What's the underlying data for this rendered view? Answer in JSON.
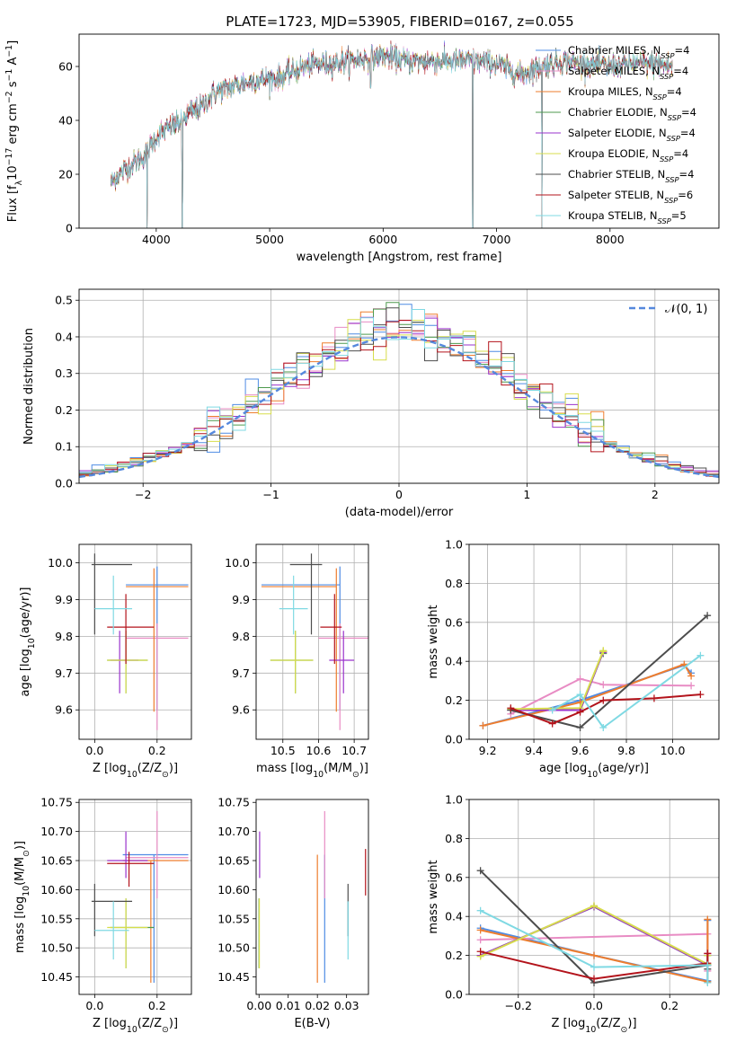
{
  "figure": {
    "title": "PLATE=1723, MJD=53905, FIBERID=0167, z=0.055"
  },
  "colors": {
    "Chabrier MILES": "#4f8ce4",
    "Salpeter MILES": "#e88cc4",
    "Kroupa MILES": "#ee7d2e",
    "Chabrier ELODIE": "#4e9a4e",
    "Salpeter ELODIE": "#9a33cc",
    "Kroupa ELODIE": "#d7dd4c",
    "Chabrier STELIB": "#4d4d4d",
    "Salpeter STELIB": "#b3131b",
    "Kroupa STELIB": "#7fd9e3"
  },
  "chart_data": [
    {
      "id": "spectrum",
      "type": "line",
      "title": "PLATE=1723, MJD=53905, FIBERID=0167, z=0.055",
      "xlabel": "wavelength [Angstrom, rest frame]",
      "ylabel": "Flux [f$_\\lambda$10$^{-17}$ erg cm$^{-2}$ s$^{-1}$ A$^{-1}$]",
      "xlim": [
        3320,
        8960
      ],
      "ylim": [
        0,
        72
      ],
      "xticks": [
        4000,
        5000,
        6000,
        7000,
        8000
      ],
      "yticks": [
        0,
        20,
        40,
        60
      ],
      "legend_position": "upper-right",
      "continuum": [
        [
          3600,
          17
        ],
        [
          3700,
          21
        ],
        [
          3800,
          24
        ],
        [
          3900,
          27
        ],
        [
          4000,
          34
        ],
        [
          4100,
          37
        ],
        [
          4200,
          39
        ],
        [
          4300,
          43
        ],
        [
          4400,
          45
        ],
        [
          4500,
          50
        ],
        [
          4700,
          53
        ],
        [
          4900,
          55
        ],
        [
          5100,
          56
        ],
        [
          5300,
          60
        ],
        [
          5500,
          61
        ],
        [
          5700,
          62
        ],
        [
          6000,
          64
        ],
        [
          6200,
          62
        ],
        [
          6400,
          62
        ],
        [
          6600,
          62
        ],
        [
          6800,
          62
        ],
        [
          7000,
          61
        ],
        [
          7200,
          57
        ],
        [
          7400,
          60
        ],
        [
          7600,
          62
        ],
        [
          7800,
          61
        ],
        [
          8000,
          60
        ],
        [
          8200,
          61
        ],
        [
          8400,
          61
        ],
        [
          8550,
          60
        ]
      ],
      "features": [
        {
          "x": 3920,
          "y": 0
        },
        {
          "x": 4230,
          "y": 0
        },
        {
          "x": 5890,
          "y": 52
        },
        {
          "x": 6790,
          "y": 0
        },
        {
          "x": 7400,
          "y": 0
        }
      ],
      "series": [
        {
          "name": "Chabrier MILES",
          "n_ssp": "4"
        },
        {
          "name": "Salpeter MILES",
          "n_ssp": "4"
        },
        {
          "name": "Kroupa MILES",
          "n_ssp": "4"
        },
        {
          "name": "Chabrier ELODIE",
          "n_ssp": "4"
        },
        {
          "name": "Salpeter ELODIE",
          "n_ssp": "4"
        },
        {
          "name": "Kroupa ELODIE",
          "n_ssp": "4"
        },
        {
          "name": "Chabrier STELIB",
          "n_ssp": "4"
        },
        {
          "name": "Salpeter STELIB",
          "n_ssp": "6"
        },
        {
          "name": "Kroupa STELIB",
          "n_ssp": "5"
        }
      ]
    },
    {
      "id": "residuals",
      "type": "bar",
      "subtype": "step-histogram",
      "xlabel": "(data-model)/error",
      "ylabel": "Normed distribution",
      "xlim": [
        -2.5,
        2.5
      ],
      "ylim": [
        0,
        0.53
      ],
      "xticks": [
        -2,
        -1,
        0,
        1,
        2
      ],
      "yticks": [
        0.0,
        0.1,
        0.2,
        0.3,
        0.4,
        0.5
      ],
      "grid": true,
      "legend": [
        {
          "label": "𝒩(0, 1)",
          "style": "dashed",
          "color": "#5588dd"
        }
      ],
      "legend_position": "upper-right",
      "bin_width": 0.1,
      "bins_left_edge": -2.5,
      "reference_curve": {
        "name": "N(0,1)",
        "mu": 0,
        "sigma": 1
      }
    },
    {
      "id": "age-vs-Z",
      "type": "scatter",
      "subtype": "errorbar",
      "xlabel": "Z [log$_{10}$(Z/Z$_\\odot$)]",
      "ylabel": "age  [log$_{10}$(age/yr)]",
      "xlim": [
        -0.05,
        0.31
      ],
      "ylim": [
        9.52,
        10.05
      ],
      "xticks": [
        0.0,
        0.2
      ],
      "yticks": [
        9.6,
        9.7,
        9.8,
        9.9,
        10.0
      ],
      "grid": true,
      "points": [
        {
          "series": "Chabrier MILES",
          "x": 0.2,
          "y": 9.94,
          "xerr": [
            0.1,
            0.1
          ],
          "yerr": [
            0.34,
            0.05
          ]
        },
        {
          "series": "Salpeter MILES",
          "x": 0.2,
          "y": 9.795,
          "xerr": [
            0.1,
            0.1
          ],
          "yerr": [
            0.25,
            0.04
          ]
        },
        {
          "series": "Kroupa MILES",
          "x": 0.19,
          "y": 9.935,
          "xerr": [
            0.09,
            0.11
          ],
          "yerr": [
            0.34,
            0.05
          ]
        },
        {
          "series": "Chabrier ELODIE",
          "x": 0.1,
          "y": 9.735,
          "xerr": [
            0.06,
            0.07
          ],
          "yerr": [
            0.09,
            0.08
          ]
        },
        {
          "series": "Salpeter ELODIE",
          "x": 0.08,
          "y": 9.735,
          "xerr": [
            0.03,
            0.06
          ],
          "yerr": [
            0.09,
            0.08
          ]
        },
        {
          "series": "Kroupa ELODIE",
          "x": 0.1,
          "y": 9.735,
          "xerr": [
            0.06,
            0.07
          ],
          "yerr": [
            0.09,
            0.08
          ]
        },
        {
          "series": "Chabrier STELIB",
          "x": 0.0,
          "y": 9.995,
          "xerr": [
            0.01,
            0.12
          ],
          "yerr": [
            0.19,
            0.03
          ]
        },
        {
          "series": "Salpeter STELIB",
          "x": 0.1,
          "y": 9.825,
          "xerr": [
            0.06,
            0.09
          ],
          "yerr": [
            0.1,
            0.09
          ]
        },
        {
          "series": "Kroupa STELIB",
          "x": 0.06,
          "y": 9.875,
          "xerr": [
            0.06,
            0.06
          ],
          "yerr": [
            0.07,
            0.09
          ]
        }
      ]
    },
    {
      "id": "age-vs-mass",
      "type": "scatter",
      "subtype": "errorbar",
      "xlabel": "mass [log$_{10}$(M/M$_\\odot$)]",
      "ylabel": "",
      "xlim": [
        10.425,
        10.74
      ],
      "ylim": [
        9.52,
        10.05
      ],
      "xticks": [
        10.5,
        10.6,
        10.7
      ],
      "yticks": [
        9.6,
        9.7,
        9.8,
        9.9,
        10.0
      ],
      "grid": true,
      "points": [
        {
          "series": "Chabrier MILES",
          "x": 10.66,
          "y": 9.94,
          "xerr": [
            0.22,
            0.0
          ],
          "yerr": [
            0.34,
            0.05
          ]
        },
        {
          "series": "Salpeter MILES",
          "x": 10.66,
          "y": 9.795,
          "xerr": [
            0.06,
            0.08
          ],
          "yerr": [
            0.25,
            0.04
          ]
        },
        {
          "series": "Kroupa MILES",
          "x": 10.65,
          "y": 9.935,
          "xerr": [
            0.21,
            0.0
          ],
          "yerr": [
            0.34,
            0.05
          ]
        },
        {
          "series": "Chabrier ELODIE",
          "x": 10.535,
          "y": 9.735,
          "xerr": [
            0.07,
            0.05
          ],
          "yerr": [
            0.09,
            0.08
          ]
        },
        {
          "series": "Salpeter ELODIE",
          "x": 10.67,
          "y": 9.735,
          "xerr": [
            0.04,
            0.03
          ],
          "yerr": [
            0.09,
            0.08
          ]
        },
        {
          "series": "Kroupa ELODIE",
          "x": 10.535,
          "y": 9.735,
          "xerr": [
            0.07,
            0.05
          ],
          "yerr": [
            0.09,
            0.08
          ]
        },
        {
          "series": "Chabrier STELIB",
          "x": 10.58,
          "y": 9.995,
          "xerr": [
            0.06,
            0.03
          ],
          "yerr": [
            0.19,
            0.03
          ]
        },
        {
          "series": "Salpeter STELIB",
          "x": 10.645,
          "y": 9.825,
          "xerr": [
            0.04,
            0.02
          ],
          "yerr": [
            0.1,
            0.09
          ]
        },
        {
          "series": "Kroupa STELIB",
          "x": 10.53,
          "y": 9.875,
          "xerr": [
            0.04,
            0.04
          ],
          "yerr": [
            0.07,
            0.09
          ]
        }
      ]
    },
    {
      "id": "weight-vs-age",
      "type": "line",
      "xlabel": "age  [log$_{10}$(age/yr)]",
      "ylabel": "mass weight",
      "xlim": [
        9.12,
        10.2
      ],
      "ylim": [
        0,
        1
      ],
      "xticks": [
        9.2,
        9.4,
        9.6,
        9.8,
        10.0
      ],
      "yticks": [
        0.0,
        0.2,
        0.4,
        0.6,
        0.8,
        1.0
      ],
      "grid": true,
      "series": [
        {
          "name": "Chabrier MILES",
          "x": [
            9.18,
            9.6,
            10.05,
            10.08
          ],
          "y": [
            0.07,
            0.2,
            0.38,
            0.34
          ]
        },
        {
          "name": "Salpeter MILES",
          "x": [
            9.3,
            9.6,
            9.7,
            10.08
          ],
          "y": [
            0.13,
            0.31,
            0.28,
            0.275
          ]
        },
        {
          "name": "Kroupa MILES",
          "x": [
            9.18,
            9.6,
            10.05,
            10.08
          ],
          "y": [
            0.07,
            0.19,
            0.385,
            0.325
          ]
        },
        {
          "name": "Chabrier ELODIE",
          "x": [
            9.3,
            9.6,
            9.7,
            9.7
          ],
          "y": [
            0.15,
            0.15,
            0.45,
            0.44
          ]
        },
        {
          "name": "Salpeter ELODIE",
          "x": [
            9.3,
            9.6,
            9.7,
            9.7
          ],
          "y": [
            0.15,
            0.15,
            0.45,
            0.445
          ]
        },
        {
          "name": "Kroupa ELODIE",
          "x": [
            9.3,
            9.6,
            9.7,
            9.7
          ],
          "y": [
            0.155,
            0.16,
            0.455,
            0.45
          ]
        },
        {
          "name": "Chabrier STELIB",
          "x": [
            9.3,
            9.6,
            10.15
          ],
          "y": [
            0.15,
            0.06,
            0.635
          ]
        },
        {
          "name": "Salpeter STELIB",
          "x": [
            9.3,
            9.48,
            9.6,
            9.7,
            9.92,
            10.12
          ],
          "y": [
            0.16,
            0.08,
            0.14,
            0.2,
            0.21,
            0.23
          ]
        },
        {
          "name": "Kroupa STELIB",
          "x": [
            9.48,
            9.6,
            9.7,
            10.12
          ],
          "y": [
            0.15,
            0.23,
            0.06,
            0.43
          ]
        }
      ]
    },
    {
      "id": "mass-vs-Z",
      "type": "scatter",
      "subtype": "errorbar",
      "xlabel": "Z [log$_{10}$(Z/Z$_\\odot$)]",
      "ylabel": "mass [log$_{10}$(M/M$_\\odot$)]",
      "xlim": [
        -0.05,
        0.31
      ],
      "ylim": [
        10.42,
        10.755
      ],
      "xticks": [
        0.0,
        0.2
      ],
      "yticks": [
        10.45,
        10.5,
        10.55,
        10.6,
        10.65,
        10.7,
        10.75
      ],
      "grid": true,
      "points": [
        {
          "series": "Chabrier MILES",
          "x": 0.19,
          "y": 10.66,
          "xerr": [
            0.1,
            0.11
          ],
          "yerr": [
            0.22,
            0.0
          ]
        },
        {
          "series": "Salpeter MILES",
          "x": 0.2,
          "y": 10.655,
          "xerr": [
            0.1,
            0.1
          ],
          "yerr": [
            0.07,
            0.08
          ]
        },
        {
          "series": "Kroupa MILES",
          "x": 0.18,
          "y": 10.65,
          "xerr": [
            0.09,
            0.12
          ],
          "yerr": [
            0.21,
            0.0
          ]
        },
        {
          "series": "Chabrier ELODIE",
          "x": 0.1,
          "y": 10.535,
          "xerr": [
            0.05,
            0.09
          ],
          "yerr": [
            0.07,
            0.05
          ]
        },
        {
          "series": "Salpeter ELODIE",
          "x": 0.1,
          "y": 10.65,
          "xerr": [
            0.06,
            0.07
          ],
          "yerr": [
            0.03,
            0.05
          ]
        },
        {
          "series": "Kroupa ELODIE",
          "x": 0.1,
          "y": 10.535,
          "xerr": [
            0.06,
            0.07
          ],
          "yerr": [
            0.07,
            0.05
          ]
        },
        {
          "series": "Chabrier STELIB",
          "x": 0.0,
          "y": 10.58,
          "xerr": [
            0.01,
            0.12
          ],
          "yerr": [
            0.06,
            0.03
          ]
        },
        {
          "series": "Salpeter STELIB",
          "x": 0.11,
          "y": 10.645,
          "xerr": [
            0.07,
            0.08
          ],
          "yerr": [
            0.04,
            0.02
          ]
        },
        {
          "series": "Kroupa STELIB",
          "x": 0.06,
          "y": 10.53,
          "xerr": [
            0.06,
            0.05
          ],
          "yerr": [
            0.05,
            0.05
          ]
        }
      ]
    },
    {
      "id": "mass-vs-ebv",
      "type": "scatter",
      "subtype": "errorbar",
      "xlabel": "E(B-V)",
      "ylabel": "",
      "xlim": [
        -0.001,
        0.0375
      ],
      "ylim": [
        10.42,
        10.755
      ],
      "xticks": [
        0.0,
        0.01,
        0.02,
        0.03
      ],
      "yticks": [
        10.45,
        10.5,
        10.55,
        10.6,
        10.65,
        10.7,
        10.75
      ],
      "grid": false,
      "points": [
        {
          "series": "Chabrier MILES",
          "x": 0.0225,
          "y": 10.66,
          "yerr": [
            0.22,
            0.0
          ]
        },
        {
          "series": "Salpeter MILES",
          "x": 0.0225,
          "y": 10.655,
          "yerr": [
            0.07,
            0.08
          ]
        },
        {
          "series": "Kroupa MILES",
          "x": 0.02,
          "y": 10.65,
          "yerr": [
            0.21,
            0.01
          ]
        },
        {
          "series": "Chabrier ELODIE",
          "x": 0.0,
          "y": 10.535,
          "yerr": [
            0.07,
            0.05
          ]
        },
        {
          "series": "Salpeter ELODIE",
          "x": 0.0002,
          "y": 10.65,
          "yerr": [
            0.03,
            0.05
          ]
        },
        {
          "series": "Kroupa ELODIE",
          "x": 0.0001,
          "y": 10.535,
          "yerr": [
            0.07,
            0.05
          ]
        },
        {
          "series": "Chabrier STELIB",
          "x": 0.0305,
          "y": 10.58,
          "yerr": [
            0.06,
            0.03
          ]
        },
        {
          "series": "Salpeter STELIB",
          "x": 0.0365,
          "y": 10.63,
          "yerr": [
            0.04,
            0.04
          ]
        },
        {
          "series": "Kroupa STELIB",
          "x": 0.0305,
          "y": 10.53,
          "yerr": [
            0.05,
            0.05
          ]
        }
      ]
    },
    {
      "id": "weight-vs-Z",
      "type": "line",
      "xlabel": "Z [log$_{10}$(Z/Z$_\\odot$)]",
      "ylabel": "mass weight",
      "xlim": [
        -0.33,
        0.33
      ],
      "ylim": [
        0,
        1
      ],
      "xticks": [
        -0.2,
        0.0,
        0.2
      ],
      "yticks": [
        0.0,
        0.2,
        0.4,
        0.6,
        0.8,
        1.0
      ],
      "grid": true,
      "series": [
        {
          "name": "Chabrier MILES",
          "x": [
            -0.3,
            0.0,
            0.3,
            0.3
          ],
          "y": [
            0.34,
            0.2,
            0.07,
            0.38
          ]
        },
        {
          "name": "Salpeter MILES",
          "x": [
            -0.3,
            0.3,
            0.3
          ],
          "y": [
            0.28,
            0.31,
            0.12
          ]
        },
        {
          "name": "Kroupa MILES",
          "x": [
            -0.3,
            0.0,
            0.3,
            0.3
          ],
          "y": [
            0.33,
            0.2,
            0.065,
            0.385
          ]
        },
        {
          "name": "Chabrier ELODIE",
          "x": [
            -0.3,
            0.0,
            0.3,
            0.3
          ],
          "y": [
            0.2,
            0.45,
            0.15,
            0.2
          ]
        },
        {
          "name": "Salpeter ELODIE",
          "x": [
            -0.3,
            0.0,
            0.3,
            0.3
          ],
          "y": [
            0.2,
            0.45,
            0.15,
            0.21
          ]
        },
        {
          "name": "Kroupa ELODIE",
          "x": [
            -0.3,
            0.0,
            0.3,
            0.3
          ],
          "y": [
            0.195,
            0.455,
            0.155,
            0.2
          ]
        },
        {
          "name": "Chabrier STELIB",
          "x": [
            -0.3,
            0.0,
            0.3,
            0.3
          ],
          "y": [
            0.635,
            0.06,
            0.15,
            0.13
          ]
        },
        {
          "name": "Salpeter STELIB",
          "x": [
            -0.3,
            0.0,
            0.3,
            0.3
          ],
          "y": [
            0.22,
            0.08,
            0.16,
            0.21
          ]
        },
        {
          "name": "Kroupa STELIB",
          "x": [
            -0.3,
            0.0,
            0.3,
            0.3
          ],
          "y": [
            0.43,
            0.14,
            0.15,
            0.06
          ]
        }
      ]
    }
  ]
}
